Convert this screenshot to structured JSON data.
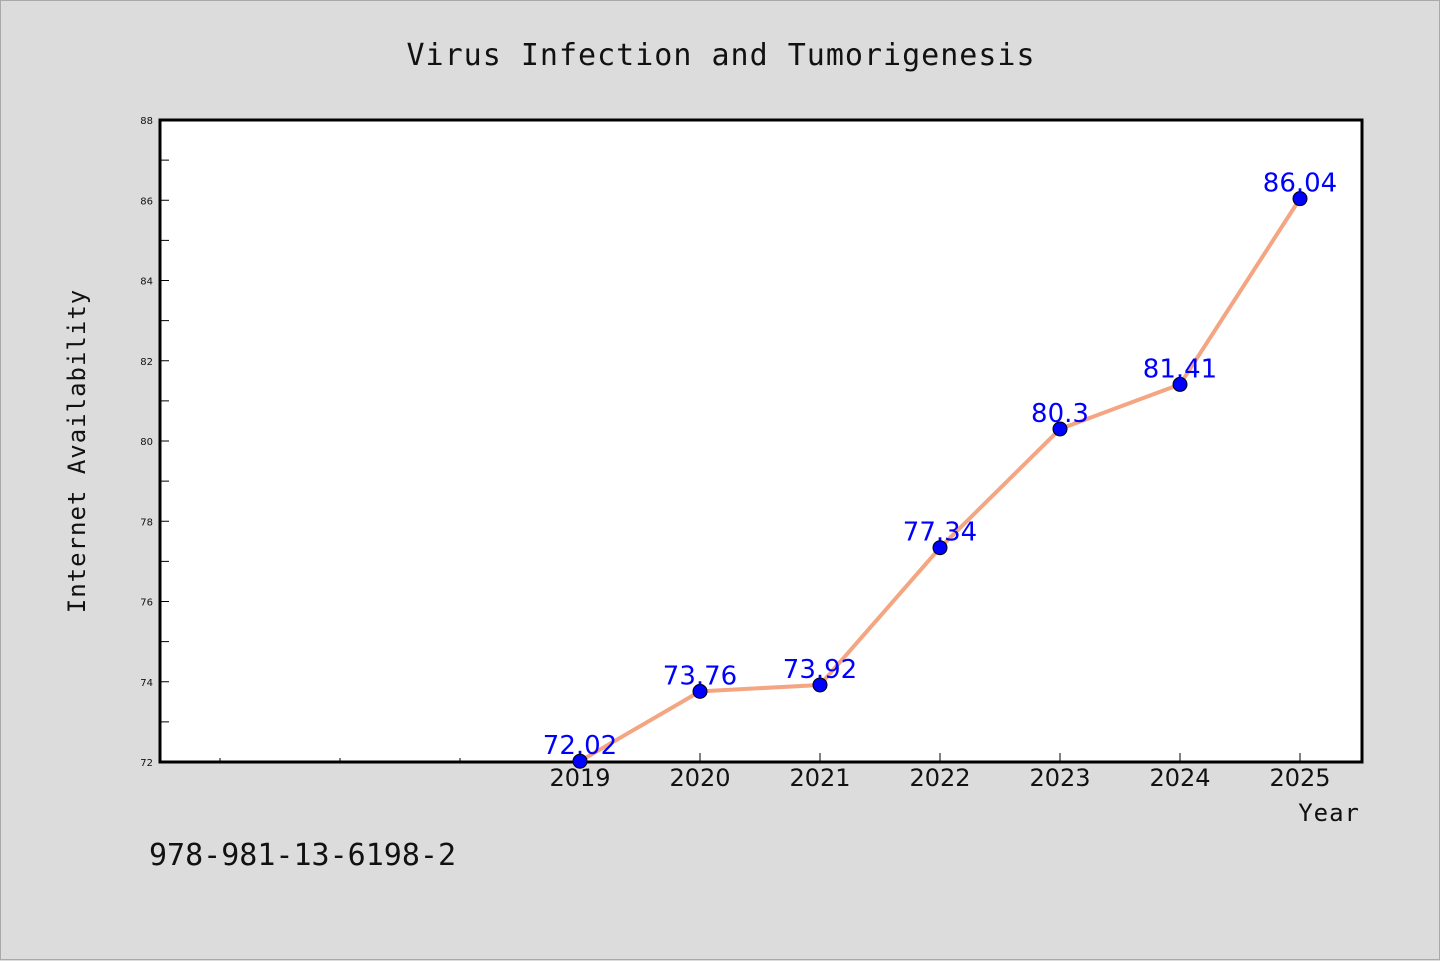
{
  "chart_data": {
    "type": "line",
    "title": "Virus Infection and Tumorigenesis",
    "xlabel": "Year",
    "ylabel": "Internet Availability",
    "x": [
      "2019",
      "2020",
      "2021",
      "2022",
      "2023",
      "2024",
      "2025"
    ],
    "series": [
      {
        "values": [
          72.02,
          73.76,
          73.92,
          77.34,
          80.3,
          81.41,
          86.04
        ]
      }
    ],
    "data_labels": [
      "72.02",
      "73.76",
      "73.92",
      "77.34",
      "80.3",
      "81.41",
      "86.04"
    ],
    "ylim": [
      72,
      88
    ],
    "y_ticks": [
      "72",
      "74",
      "76",
      "78",
      "80",
      "82",
      "84",
      "86",
      "88"
    ],
    "grid": false,
    "legend": "none",
    "colors": {
      "line": "#f4a582",
      "marker": "#0000ff",
      "data_label": "#0000ff",
      "background": "#dcdcdc",
      "plot_area": "#ffffff"
    }
  },
  "footer": {
    "isbn": "978-981-13-6198-2"
  }
}
